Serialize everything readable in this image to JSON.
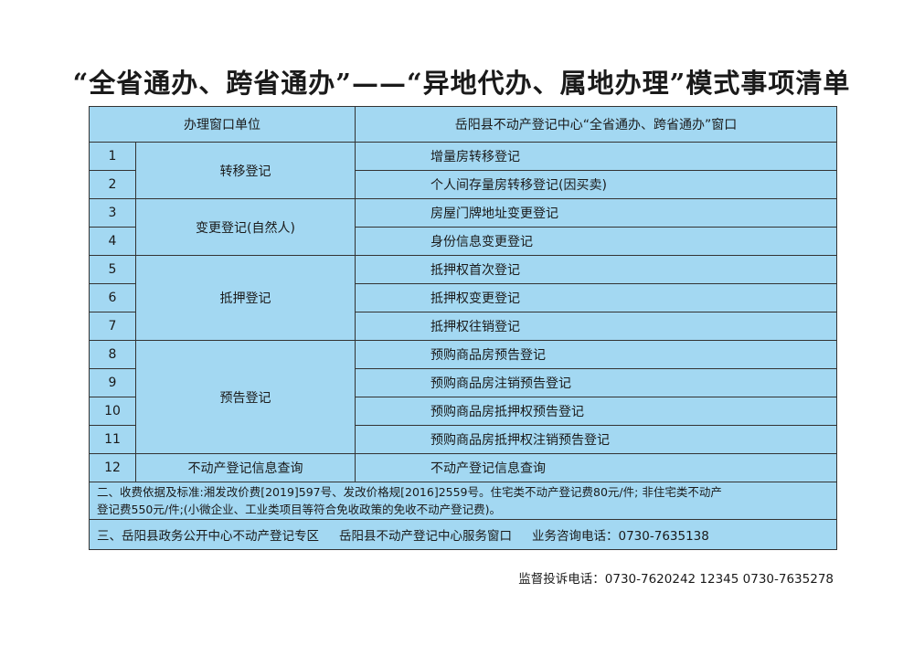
{
  "title": "“全省通办、跨省通办”——“异地代办、属地办理”模式事项清单",
  "header": {
    "label": "办理窗口单位",
    "value": "岳阳县不动产登记中心“全省通办、跨省通办”窗口"
  },
  "groups": [
    {
      "name": "转移登记",
      "rows": [
        {
          "no": "1",
          "item": "增量房转移登记"
        },
        {
          "no": "2",
          "item": "个人间存量房转移登记(因买卖)"
        }
      ]
    },
    {
      "name": "变更登记(自然人)",
      "rows": [
        {
          "no": "3",
          "item": "房屋门牌地址变更登记"
        },
        {
          "no": "4",
          "item": "身份信息变更登记"
        }
      ]
    },
    {
      "name": "抵押登记",
      "rows": [
        {
          "no": "5",
          "item": "抵押权首次登记"
        },
        {
          "no": "6",
          "item": "抵押权变更登记"
        },
        {
          "no": "7",
          "item": "抵押权往销登记"
        }
      ]
    },
    {
      "name": "预告登记",
      "rows": [
        {
          "no": "8",
          "item": "预购商品房预告登记"
        },
        {
          "no": "9",
          "item": "预购商品房注销预告登记"
        },
        {
          "no": "10",
          "item": "预购商品房抵押权预告登记"
        },
        {
          "no": "11",
          "item": "预购商品房抵押权注销预告登记"
        }
      ]
    },
    {
      "name": "不动产登记信息查询",
      "rows": [
        {
          "no": "12",
          "item": "不动产登记信息查询"
        }
      ]
    }
  ],
  "fee": {
    "line1": "二、收费依据及标准:湘发改价费[2019]597号、发改价格规[2016]2559号。住宅类不动产登记费80元/件; 非住宅类不动产",
    "line2": "登记费550元/件;(小微企业、工业类项目等符合免收政策的免收不动产登记费)。"
  },
  "address": {
    "part1": "三、岳阳县政务公开中心不动产登记专区",
    "part2": "岳阳县不动产登记中心服务窗口",
    "part3": "业务咨询电话：0730-7635138"
  },
  "footer": "监督投诉电话：0730-7620242 12345 0730-7635278"
}
